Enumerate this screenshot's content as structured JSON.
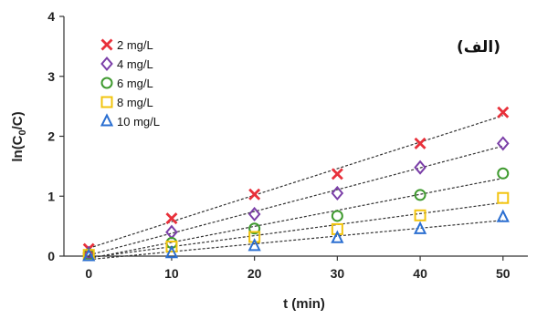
{
  "chart_data": {
    "type": "scatter",
    "panel_label": "(الف)",
    "xlabel": "t (min)",
    "ylabel_main": "ln(C",
    "ylabel_sub": "0",
    "ylabel_end": "/C)",
    "xlim": [
      -3,
      53
    ],
    "ylim": [
      0,
      4
    ],
    "x_ticks": [
      0,
      10,
      20,
      30,
      40,
      50
    ],
    "y_ticks": [
      0,
      1,
      2,
      3,
      4
    ],
    "grid": false,
    "legend_position": "top-left",
    "x": [
      0,
      10,
      20,
      30,
      40,
      50
    ],
    "series": [
      {
        "name": "2 mg/L",
        "marker": "x",
        "color": "#e8303a",
        "values": [
          0.12,
          0.63,
          1.03,
          1.37,
          1.88,
          2.4
        ]
      },
      {
        "name": "4 mg/L",
        "marker": "diamond",
        "color": "#7b3fa8",
        "values": [
          0.05,
          0.4,
          0.7,
          1.05,
          1.48,
          1.88
        ]
      },
      {
        "name": "6 mg/L",
        "marker": "circle",
        "color": "#3f9a2f",
        "values": [
          0.03,
          0.22,
          0.46,
          0.67,
          1.02,
          1.38
        ]
      },
      {
        "name": "8 mg/L",
        "marker": "square",
        "color": "#f2c40f",
        "values": [
          0.02,
          0.16,
          0.32,
          0.45,
          0.68,
          0.97
        ]
      },
      {
        "name": "10 mg/L",
        "marker": "triangle",
        "color": "#2b6fd1",
        "values": [
          0.0,
          0.05,
          0.17,
          0.3,
          0.45,
          0.65
        ]
      }
    ]
  }
}
